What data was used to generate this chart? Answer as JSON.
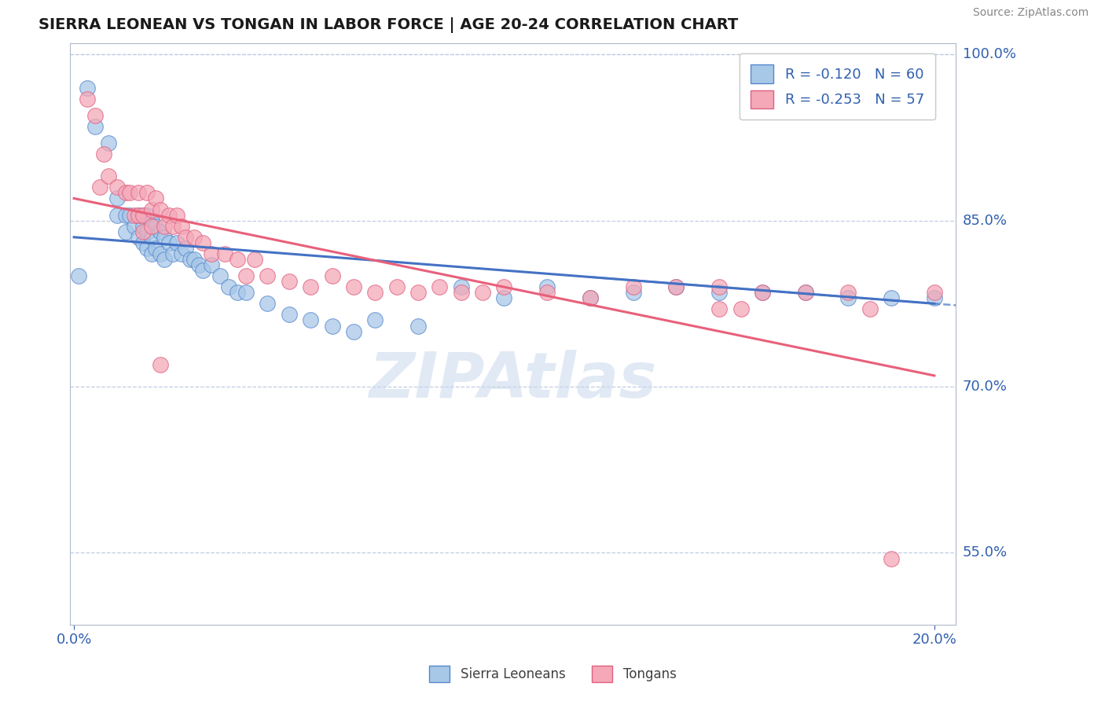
{
  "title": "SIERRA LEONEAN VS TONGAN IN LABOR FORCE | AGE 20-24 CORRELATION CHART",
  "source": "Source: ZipAtlas.com",
  "xlim": [
    0.0,
    0.2
  ],
  "ylim": [
    0.485,
    1.01
  ],
  "ylabel_ticks": [
    0.55,
    0.7,
    0.85,
    1.0
  ],
  "ylabel_tick_labels": [
    "55.0%",
    "70.0%",
    "85.0%",
    "100.0%"
  ],
  "xtick_labels": [
    "0.0%",
    "20.0%"
  ],
  "xtick_vals": [
    0.0,
    0.2
  ],
  "blue_color": "#a8c8e8",
  "pink_color": "#f4a8b8",
  "blue_edge_color": "#5588cc",
  "pink_edge_color": "#e06080",
  "blue_line_color": "#4472c4",
  "pink_line_color": "#e8607a",
  "blue_R": -0.12,
  "blue_N": 60,
  "pink_R": -0.253,
  "pink_N": 57,
  "watermark": "ZIPAtlas",
  "watermark_color": "#c8d8ec",
  "blue_x": [
    0.001,
    0.003,
    0.005,
    0.008,
    0.01,
    0.01,
    0.012,
    0.012,
    0.013,
    0.014,
    0.015,
    0.015,
    0.016,
    0.016,
    0.016,
    0.017,
    0.017,
    0.017,
    0.018,
    0.018,
    0.018,
    0.019,
    0.019,
    0.02,
    0.02,
    0.021,
    0.021,
    0.022,
    0.023,
    0.024,
    0.025,
    0.026,
    0.027,
    0.028,
    0.029,
    0.03,
    0.032,
    0.034,
    0.036,
    0.038,
    0.04,
    0.045,
    0.05,
    0.055,
    0.06,
    0.065,
    0.07,
    0.08,
    0.09,
    0.1,
    0.11,
    0.12,
    0.13,
    0.14,
    0.15,
    0.16,
    0.17,
    0.18,
    0.19,
    0.2
  ],
  "blue_y": [
    0.8,
    0.97,
    0.935,
    0.92,
    0.87,
    0.855,
    0.855,
    0.84,
    0.855,
    0.845,
    0.855,
    0.835,
    0.855,
    0.845,
    0.83,
    0.855,
    0.84,
    0.825,
    0.85,
    0.835,
    0.82,
    0.845,
    0.825,
    0.84,
    0.82,
    0.835,
    0.815,
    0.83,
    0.82,
    0.83,
    0.82,
    0.825,
    0.815,
    0.815,
    0.81,
    0.805,
    0.81,
    0.8,
    0.79,
    0.785,
    0.785,
    0.775,
    0.765,
    0.76,
    0.755,
    0.75,
    0.76,
    0.755,
    0.79,
    0.78,
    0.79,
    0.78,
    0.785,
    0.79,
    0.785,
    0.785,
    0.785,
    0.78,
    0.78,
    0.78
  ],
  "pink_x": [
    0.003,
    0.005,
    0.006,
    0.007,
    0.008,
    0.01,
    0.012,
    0.013,
    0.014,
    0.015,
    0.015,
    0.016,
    0.016,
    0.017,
    0.018,
    0.018,
    0.019,
    0.02,
    0.021,
    0.022,
    0.023,
    0.024,
    0.025,
    0.026,
    0.028,
    0.03,
    0.032,
    0.035,
    0.038,
    0.04,
    0.042,
    0.045,
    0.05,
    0.055,
    0.06,
    0.065,
    0.07,
    0.075,
    0.08,
    0.085,
    0.09,
    0.095,
    0.1,
    0.11,
    0.12,
    0.13,
    0.14,
    0.15,
    0.155,
    0.16,
    0.17,
    0.18,
    0.185,
    0.19,
    0.2,
    0.15,
    0.02
  ],
  "pink_y": [
    0.96,
    0.945,
    0.88,
    0.91,
    0.89,
    0.88,
    0.875,
    0.875,
    0.855,
    0.875,
    0.855,
    0.855,
    0.84,
    0.875,
    0.86,
    0.845,
    0.87,
    0.86,
    0.845,
    0.855,
    0.845,
    0.855,
    0.845,
    0.835,
    0.835,
    0.83,
    0.82,
    0.82,
    0.815,
    0.8,
    0.815,
    0.8,
    0.795,
    0.79,
    0.8,
    0.79,
    0.785,
    0.79,
    0.785,
    0.79,
    0.785,
    0.785,
    0.79,
    0.785,
    0.78,
    0.79,
    0.79,
    0.79,
    0.77,
    0.785,
    0.785,
    0.785,
    0.77,
    0.545,
    0.785,
    0.77,
    0.72
  ]
}
